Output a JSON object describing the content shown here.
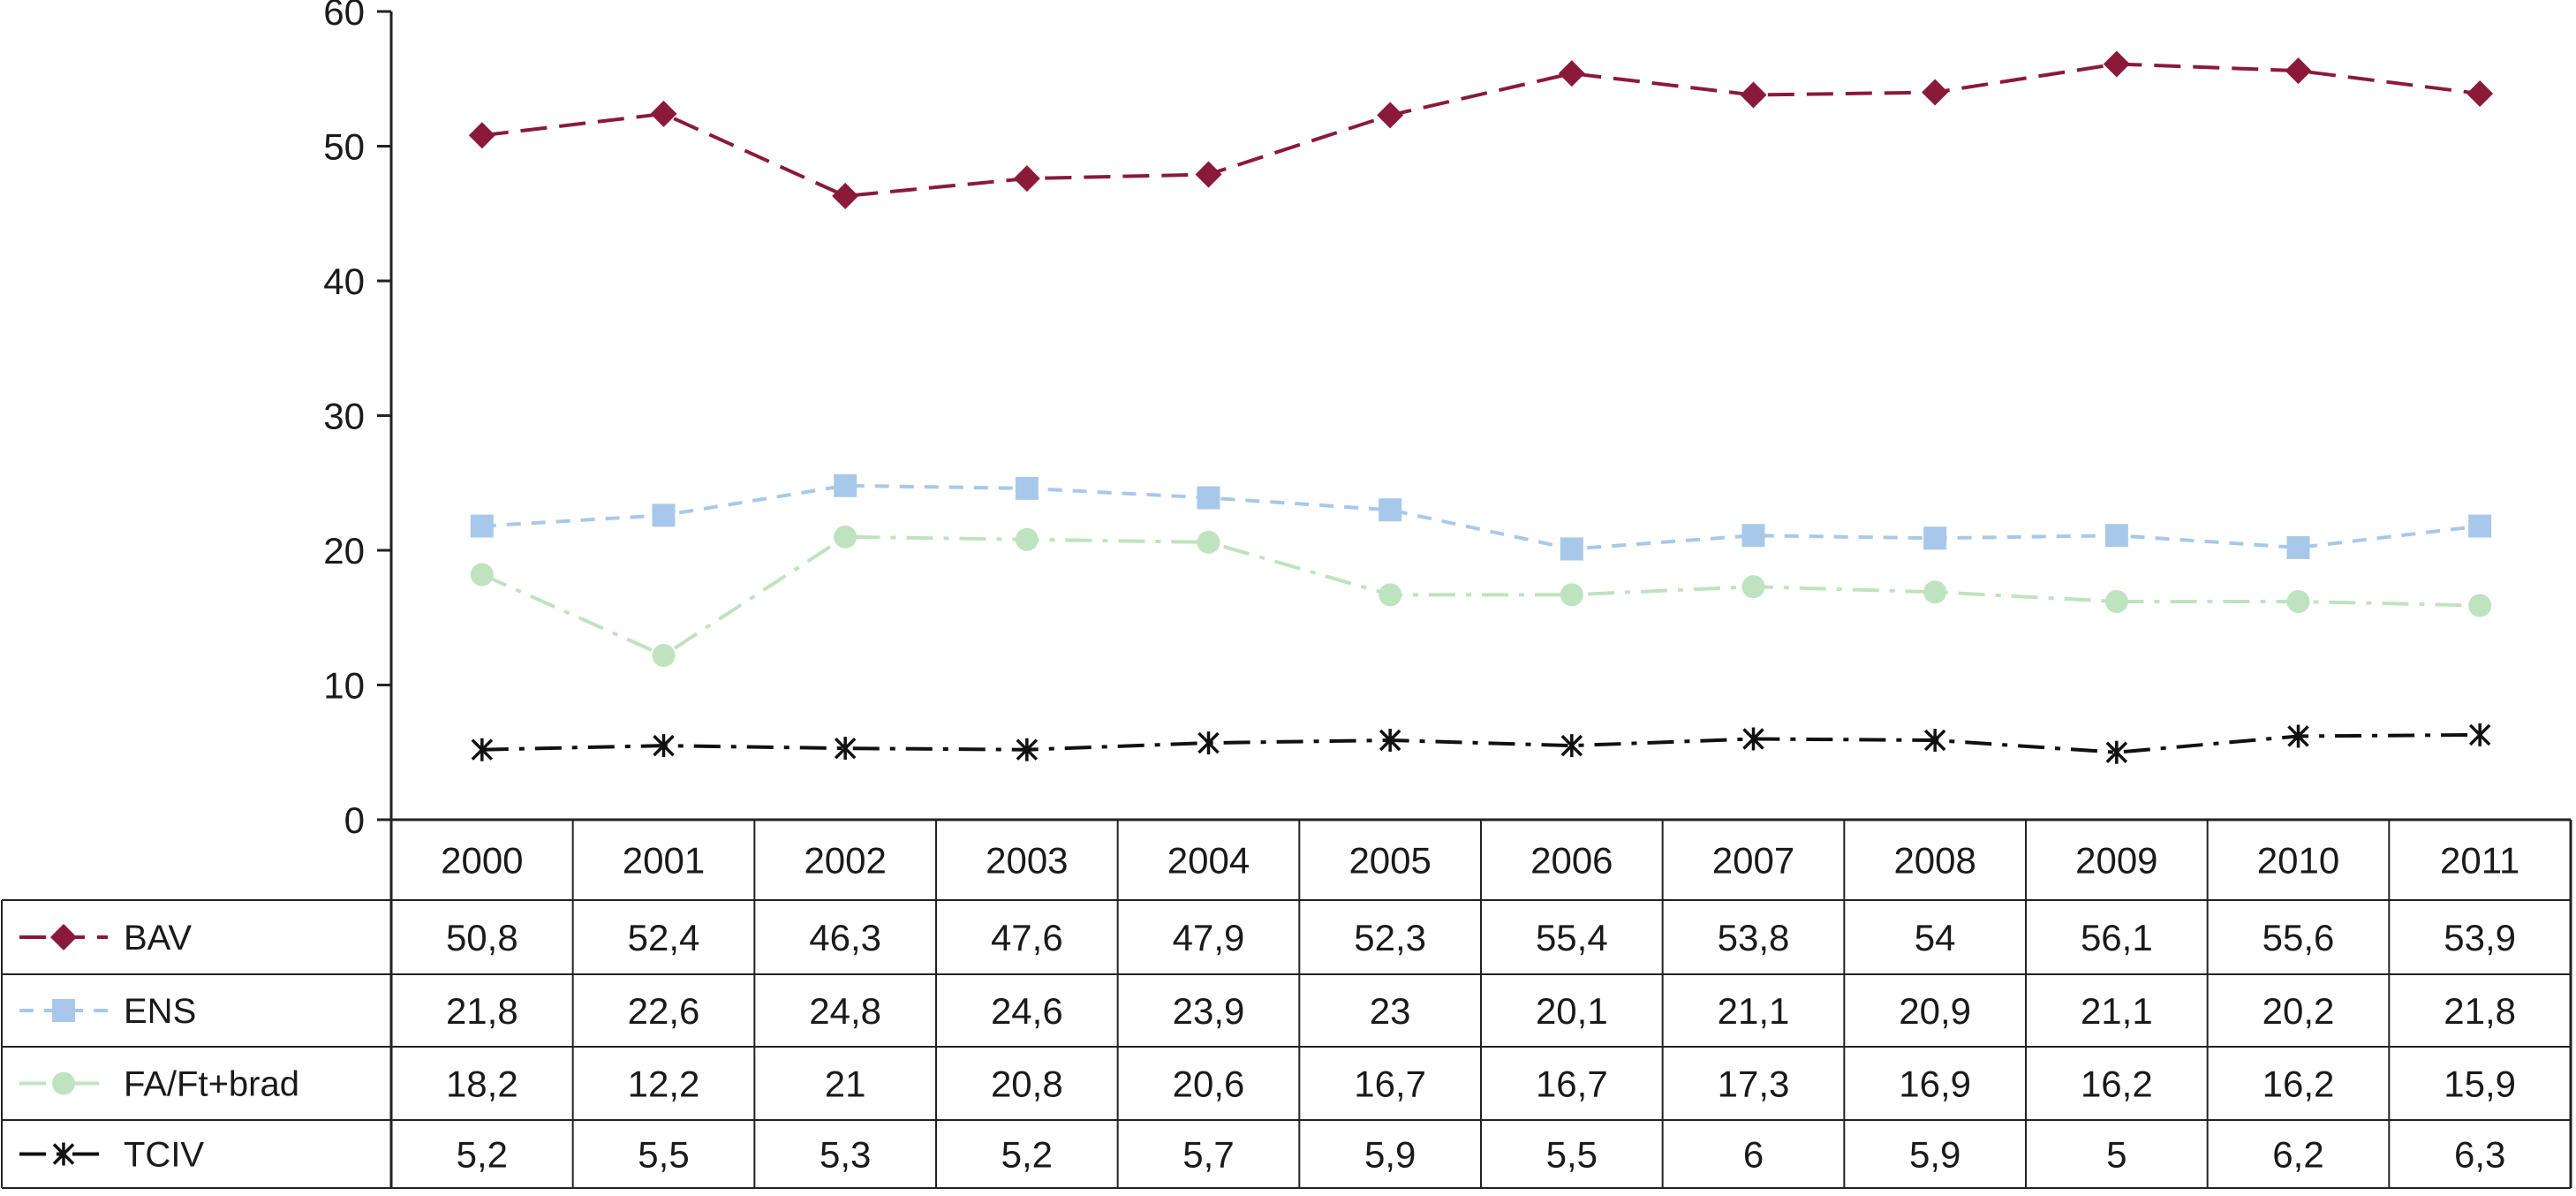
{
  "chart_data": {
    "type": "line",
    "title": "",
    "xlabel": "",
    "ylabel": "",
    "ylim": [
      0,
      60
    ],
    "y_ticks": [
      "0",
      "10",
      "20",
      "30",
      "40",
      "50",
      "60"
    ],
    "grid": false,
    "legend": "table-left",
    "categories": [
      "2000",
      "2001",
      "2002",
      "2003",
      "2004",
      "2005",
      "2006",
      "2007",
      "2008",
      "2009",
      "2010",
      "2011"
    ],
    "series": [
      {
        "name": "BAV",
        "color": "#8b1a3a",
        "marker": "diamond",
        "dash": "long-dash",
        "values": [
          50.8,
          52.4,
          46.3,
          47.6,
          47.9,
          52.3,
          55.4,
          53.8,
          54,
          56.1,
          55.6,
          53.9
        ],
        "labels": [
          "50,8",
          "52,4",
          "46,3",
          "47,6",
          "47,9",
          "52,3",
          "55,4",
          "53,8",
          "54",
          "56,1",
          "55,6",
          "53,9"
        ]
      },
      {
        "name": "ENS",
        "color": "#a8c8ea",
        "marker": "square",
        "dash": "short-dash",
        "values": [
          21.8,
          22.6,
          24.8,
          24.6,
          23.9,
          23,
          20.1,
          21.1,
          20.9,
          21.1,
          20.2,
          21.8
        ],
        "labels": [
          "21,8",
          "22,6",
          "24,8",
          "24,6",
          "23,9",
          "23",
          "20,1",
          "21,1",
          "20,9",
          "21,1",
          "20,2",
          "21,8"
        ]
      },
      {
        "name": "FA/Ft+brad",
        "color": "#bfe3bf",
        "marker": "circle",
        "dash": "dash-dot",
        "values": [
          18.2,
          12.2,
          21,
          20.8,
          20.6,
          16.7,
          16.7,
          17.3,
          16.9,
          16.2,
          16.2,
          15.9
        ],
        "labels": [
          "18,2",
          "12,2",
          "21",
          "20,8",
          "20,6",
          "16,7",
          "16,7",
          "17,3",
          "16,9",
          "16,2",
          "16,2",
          "15,9"
        ]
      },
      {
        "name": "TCIV",
        "color": "#111111",
        "marker": "star",
        "dash": "dash-dot",
        "values": [
          5.2,
          5.5,
          5.3,
          5.2,
          5.7,
          5.9,
          5.5,
          6,
          5.9,
          5,
          6.2,
          6.3
        ],
        "labels": [
          "5,2",
          "5,5",
          "5,3",
          "5,2",
          "5,7",
          "5,9",
          "5,5",
          "6",
          "5,9",
          "5",
          "6,2",
          "6,3"
        ]
      }
    ]
  }
}
